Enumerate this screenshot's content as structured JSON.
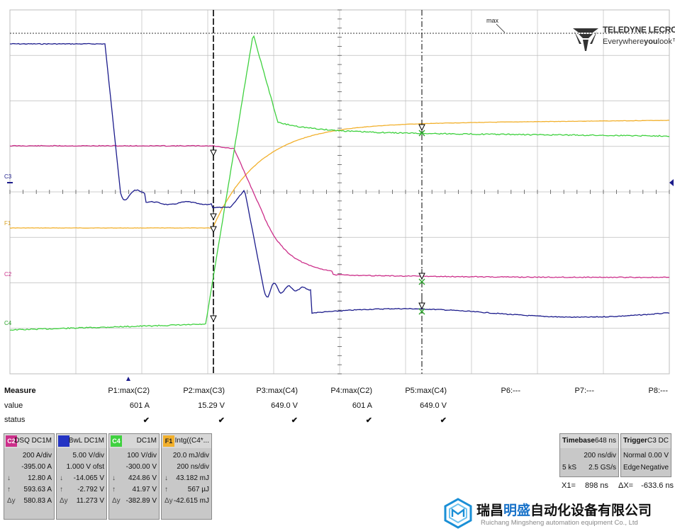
{
  "screen": {
    "max_label": "max",
    "channel_markers": [
      "C3",
      "F1",
      "C2",
      "C4"
    ],
    "brand": {
      "name": "TELEDYNE LECROY",
      "slogan_pre": "Everywhere",
      "slogan_bold": "you",
      "slogan_post": "look",
      "tm": "™"
    }
  },
  "colors": {
    "c2": "#cc2f8a",
    "c3": "#1c1c8c",
    "c4": "#3fd13f",
    "f1": "#f2b02c",
    "grid": "#bdbdbd"
  },
  "measure": {
    "title": "Measure",
    "row_labels": [
      "value",
      "status"
    ],
    "columns": [
      {
        "param": "P1:max(C2)",
        "value": "601 A",
        "status": "✔"
      },
      {
        "param": "P2:max(C3)",
        "value": "15.29 V",
        "status": "✔"
      },
      {
        "param": "P3:max(C4)",
        "value": "649.0 V",
        "status": "✔"
      },
      {
        "param": "P4:max(C2)",
        "value": "601 A",
        "status": "✔"
      },
      {
        "param": "P5:max(C4)",
        "value": "649.0 V",
        "status": "✔"
      },
      {
        "param": "P6:---",
        "value": "",
        "status": ""
      },
      {
        "param": "P7:---",
        "value": "",
        "status": ""
      },
      {
        "param": "P8:---",
        "value": "",
        "status": ""
      }
    ]
  },
  "channels": [
    {
      "id": "C2",
      "title": "DSQ DC1M",
      "lines": [
        "200 A/div",
        "-395.00 A",
        "12.80 A",
        "593.63 A",
        "580.83 A"
      ],
      "syms": [
        "",
        "",
        "↓",
        "↑",
        "Δy"
      ]
    },
    {
      "id": "C3",
      "title": "BwL DC1M",
      "lines": [
        "5.00 V/div",
        "1.000 V ofst",
        "-14.065 V",
        "-2.792 V",
        "11.273 V"
      ],
      "syms": [
        "",
        "",
        "↓",
        "↑",
        "Δy"
      ]
    },
    {
      "id": "C4",
      "title": "DC1M",
      "lines": [
        "100 V/div",
        "-300.00 V",
        "424.86 V",
        "41.97 V",
        "-382.89 V"
      ],
      "syms": [
        "",
        "",
        "↓",
        "↑",
        "Δy"
      ]
    },
    {
      "id": "F1",
      "title": "Intg((C4*...",
      "lines": [
        "20.0 mJ/div",
        "200 ns/div",
        "43.182 mJ",
        "567 µJ",
        "-42.615 mJ"
      ],
      "syms": [
        "",
        "",
        "↓",
        "↑",
        "Δy"
      ]
    }
  ],
  "timebase": {
    "label": "Timebase",
    "delay": "-648 ns",
    "div": "200 ns/div",
    "samples": "5 kS",
    "rate": "2.5 GS/s"
  },
  "trigger": {
    "label": "Trigger",
    "src": "C3 DC",
    "mode": "Normal",
    "level": "0.00 V",
    "type": "Edge",
    "slope": "Negative"
  },
  "cursors": {
    "x1_label": "X1=",
    "x1": "898 ns",
    "dx_label": "ΔX=",
    "dx": "-633.6 ns"
  },
  "watermark": {
    "cn_pre": "瑞昌",
    "cn_hl": "明盛",
    "cn_post": "自动化设备有限公司",
    "en": "Ruichang Mingsheng automation equipment Co., Ltd"
  }
}
